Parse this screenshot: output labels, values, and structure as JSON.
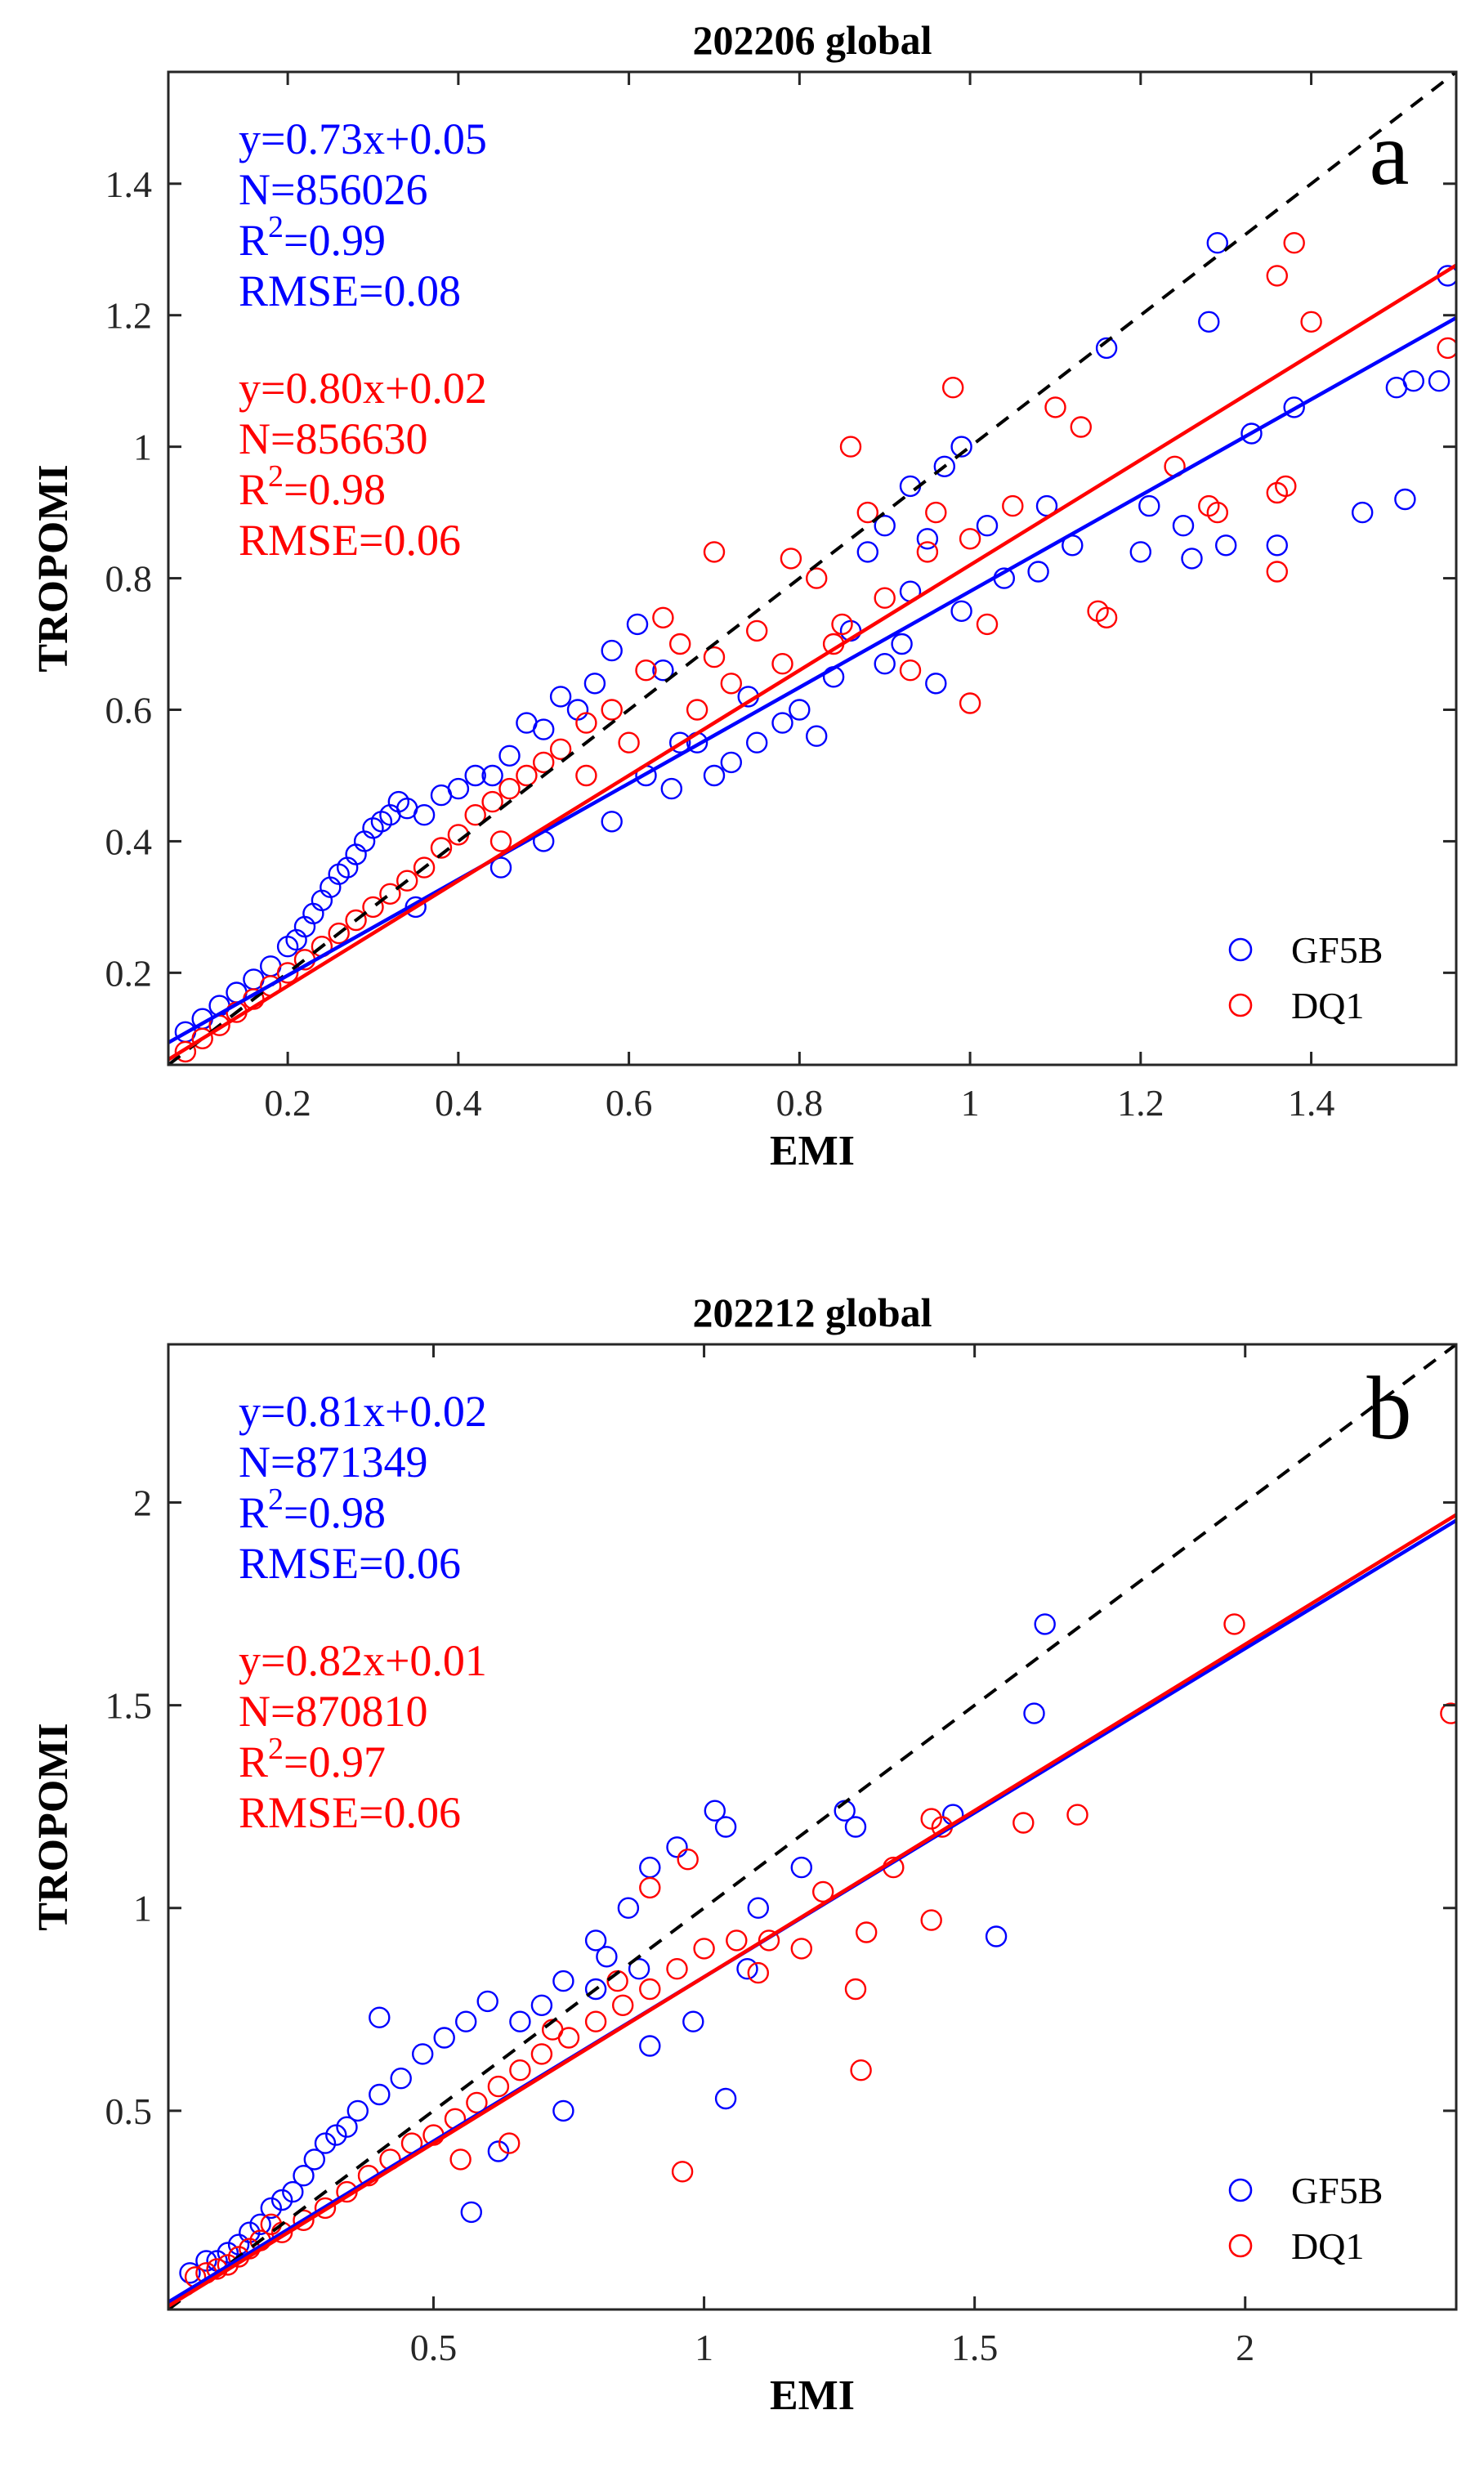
{
  "chart_data": [
    {
      "type": "scatter",
      "title": "202206 global",
      "xlabel": "EMI",
      "ylabel": "TROPOMI",
      "xlim": [
        0.06,
        1.57
      ],
      "ylim": [
        0.06,
        1.57
      ],
      "xticks": [
        0.2,
        0.4,
        0.6,
        0.8,
        1,
        1.2,
        1.4
      ],
      "yticks": [
        0.2,
        0.4,
        0.6,
        0.8,
        1,
        1.2,
        1.4
      ],
      "panel_letter": "a",
      "one_to_one_line": true,
      "legend_placement": "bottom-right",
      "series": [
        {
          "name": "GF5B",
          "color": "#0000ff",
          "marker": "circle-open",
          "fit": {
            "slope": 0.73,
            "intercept": 0.05
          },
          "stats": [
            "y=0.73x+0.05",
            "N=856026",
            "R",
            "=0.99",
            "RMSE=0.08"
          ],
          "points": [
            [
              1.29,
              1.31
            ],
            [
              1.56,
              1.26
            ],
            [
              1.28,
              1.19
            ],
            [
              1.16,
              1.15
            ],
            [
              1.38,
              1.06
            ],
            [
              1.33,
              1.02
            ],
            [
              1.52,
              1.1
            ],
            [
              1.5,
              1.09
            ],
            [
              1.55,
              1.1
            ],
            [
              1.25,
              0.88
            ],
            [
              1.21,
              0.91
            ],
            [
              1.12,
              0.85
            ],
            [
              1.2,
              0.84
            ],
            [
              1.3,
              0.85
            ],
            [
              1.36,
              0.85
            ],
            [
              1.46,
              0.9
            ],
            [
              1.51,
              0.92
            ],
            [
              1.26,
              0.83
            ],
            [
              1.04,
              0.8
            ],
            [
              1.08,
              0.81
            ],
            [
              0.97,
              0.97
            ],
            [
              0.99,
              1.0
            ],
            [
              0.93,
              0.94
            ],
            [
              1.09,
              0.91
            ],
            [
              1.02,
              0.88
            ],
            [
              0.9,
              0.88
            ],
            [
              0.95,
              0.86
            ],
            [
              0.88,
              0.84
            ],
            [
              0.93,
              0.78
            ],
            [
              0.99,
              0.75
            ],
            [
              0.86,
              0.72
            ],
            [
              0.84,
              0.65
            ],
            [
              0.9,
              0.67
            ],
            [
              0.78,
              0.58
            ],
            [
              0.82,
              0.56
            ],
            [
              0.75,
              0.55
            ],
            [
              0.72,
              0.52
            ],
            [
              0.7,
              0.5
            ],
            [
              0.68,
              0.55
            ],
            [
              0.64,
              0.66
            ],
            [
              0.61,
              0.73
            ],
            [
              0.58,
              0.69
            ],
            [
              0.56,
              0.64
            ],
            [
              0.54,
              0.6
            ],
            [
              0.52,
              0.62
            ],
            [
              0.5,
              0.57
            ],
            [
              0.48,
              0.58
            ],
            [
              0.46,
              0.53
            ],
            [
              0.44,
              0.5
            ],
            [
              0.42,
              0.5
            ],
            [
              0.4,
              0.48
            ],
            [
              0.38,
              0.47
            ],
            [
              0.36,
              0.44
            ],
            [
              0.34,
              0.45
            ],
            [
              0.33,
              0.46
            ],
            [
              0.32,
              0.44
            ],
            [
              0.31,
              0.43
            ],
            [
              0.3,
              0.42
            ],
            [
              0.29,
              0.4
            ],
            [
              0.28,
              0.38
            ],
            [
              0.27,
              0.36
            ],
            [
              0.26,
              0.35
            ],
            [
              0.25,
              0.33
            ],
            [
              0.24,
              0.31
            ],
            [
              0.23,
              0.29
            ],
            [
              0.22,
              0.27
            ],
            [
              0.21,
              0.25
            ],
            [
              0.2,
              0.24
            ],
            [
              0.18,
              0.21
            ],
            [
              0.16,
              0.19
            ],
            [
              0.14,
              0.17
            ],
            [
              0.12,
              0.15
            ],
            [
              0.1,
              0.13
            ],
            [
              0.08,
              0.11
            ],
            [
              0.35,
              0.3
            ],
            [
              0.5,
              0.4
            ],
            [
              0.62,
              0.5
            ],
            [
              0.66,
              0.55
            ],
            [
              0.74,
              0.62
            ],
            [
              0.8,
              0.6
            ],
            [
              0.92,
              0.7
            ],
            [
              0.96,
              0.64
            ],
            [
              0.65,
              0.48
            ],
            [
              0.58,
              0.43
            ],
            [
              0.45,
              0.36
            ]
          ]
        },
        {
          "name": "DQ1",
          "color": "#ff0000",
          "marker": "circle-open",
          "fit": {
            "slope": 0.8,
            "intercept": 0.02
          },
          "stats": [
            "y=0.80x+0.02",
            "N=856630",
            "R",
            "=0.98",
            "RMSE=0.06"
          ],
          "points": [
            [
              1.38,
              1.31
            ],
            [
              1.36,
              1.26
            ],
            [
              1.4,
              1.19
            ],
            [
              1.56,
              1.15
            ],
            [
              0.98,
              1.09
            ],
            [
              1.1,
              1.06
            ],
            [
              1.13,
              1.03
            ],
            [
              1.24,
              0.97
            ],
            [
              1.36,
              0.93
            ],
            [
              1.37,
              0.94
            ],
            [
              1.28,
              0.91
            ],
            [
              1.29,
              0.9
            ],
            [
              1.36,
              0.81
            ],
            [
              1.16,
              0.74
            ],
            [
              1.15,
              0.75
            ],
            [
              0.86,
              1.0
            ],
            [
              0.88,
              0.9
            ],
            [
              0.96,
              0.9
            ],
            [
              1.0,
              0.86
            ],
            [
              1.05,
              0.91
            ],
            [
              0.95,
              0.84
            ],
            [
              1.02,
              0.73
            ],
            [
              1.0,
              0.61
            ],
            [
              0.93,
              0.66
            ],
            [
              0.84,
              0.7
            ],
            [
              0.82,
              0.8
            ],
            [
              0.75,
              0.72
            ],
            [
              0.7,
              0.68
            ],
            [
              0.66,
              0.7
            ],
            [
              0.62,
              0.66
            ],
            [
              0.58,
              0.6
            ],
            [
              0.55,
              0.58
            ],
            [
              0.52,
              0.54
            ],
            [
              0.5,
              0.52
            ],
            [
              0.48,
              0.5
            ],
            [
              0.46,
              0.48
            ],
            [
              0.44,
              0.46
            ],
            [
              0.42,
              0.44
            ],
            [
              0.4,
              0.41
            ],
            [
              0.38,
              0.39
            ],
            [
              0.36,
              0.36
            ],
            [
              0.34,
              0.34
            ],
            [
              0.32,
              0.32
            ],
            [
              0.3,
              0.3
            ],
            [
              0.28,
              0.28
            ],
            [
              0.26,
              0.26
            ],
            [
              0.24,
              0.24
            ],
            [
              0.22,
              0.22
            ],
            [
              0.2,
              0.2
            ],
            [
              0.18,
              0.18
            ],
            [
              0.16,
              0.16
            ],
            [
              0.14,
              0.14
            ],
            [
              0.12,
              0.12
            ],
            [
              0.1,
              0.1
            ],
            [
              0.08,
              0.08
            ],
            [
              0.45,
              0.4
            ],
            [
              0.55,
              0.5
            ],
            [
              0.6,
              0.55
            ],
            [
              0.68,
              0.6
            ],
            [
              0.72,
              0.64
            ],
            [
              0.78,
              0.67
            ],
            [
              0.85,
              0.73
            ],
            [
              0.9,
              0.77
            ],
            [
              0.64,
              0.74
            ],
            [
              0.7,
              0.84
            ],
            [
              0.79,
              0.83
            ]
          ]
        }
      ]
    },
    {
      "type": "scatter",
      "title": "202212 global",
      "xlabel": "EMI",
      "ylabel": "TROPOMI",
      "xlim": [
        0.01,
        2.39
      ],
      "ylim": [
        0.01,
        2.39
      ],
      "xticks": [
        0.5,
        1,
        1.5,
        2
      ],
      "yticks": [
        0.5,
        1,
        1.5,
        2
      ],
      "panel_letter": "b",
      "one_to_one_line": true,
      "legend_placement": "bottom-right",
      "series": [
        {
          "name": "GF5B",
          "color": "#0000ff",
          "marker": "circle-open",
          "fit": {
            "slope": 0.81,
            "intercept": 0.02
          },
          "stats": [
            "y=0.81x+0.02",
            "N=871349",
            "R",
            "=0.98",
            "RMSE=0.06"
          ],
          "points": [
            [
              1.63,
              1.7
            ],
            [
              1.61,
              1.48
            ],
            [
              1.54,
              0.93
            ],
            [
              1.46,
              1.23
            ],
            [
              1.26,
              1.24
            ],
            [
              1.28,
              1.2
            ],
            [
              1.18,
              1.1
            ],
            [
              1.1,
              1.0
            ],
            [
              1.02,
              1.24
            ],
            [
              1.04,
              1.2
            ],
            [
              0.95,
              1.15
            ],
            [
              0.9,
              1.1
            ],
            [
              0.86,
              1.0
            ],
            [
              0.8,
              0.92
            ],
            [
              1.04,
              0.53
            ],
            [
              0.88,
              0.85
            ],
            [
              0.82,
              0.88
            ],
            [
              0.8,
              0.8
            ],
            [
              0.74,
              0.82
            ],
            [
              0.7,
              0.76
            ],
            [
              0.66,
              0.72
            ],
            [
              0.6,
              0.77
            ],
            [
              0.56,
              0.72
            ],
            [
              0.52,
              0.68
            ],
            [
              0.48,
              0.64
            ],
            [
              0.44,
              0.58
            ],
            [
              0.4,
              0.54
            ],
            [
              0.4,
              0.73
            ],
            [
              0.36,
              0.5
            ],
            [
              0.34,
              0.46
            ],
            [
              0.32,
              0.44
            ],
            [
              0.3,
              0.42
            ],
            [
              0.28,
              0.38
            ],
            [
              0.26,
              0.34
            ],
            [
              0.24,
              0.3
            ],
            [
              0.22,
              0.28
            ],
            [
              0.2,
              0.26
            ],
            [
              0.18,
              0.22
            ],
            [
              0.16,
              0.2
            ],
            [
              0.14,
              0.17
            ],
            [
              0.12,
              0.15
            ],
            [
              0.1,
              0.13
            ],
            [
              0.08,
              0.13
            ],
            [
              0.05,
              0.1
            ],
            [
              0.57,
              0.25
            ],
            [
              0.62,
              0.4
            ],
            [
              0.74,
              0.5
            ],
            [
              0.9,
              0.66
            ],
            [
              0.98,
              0.72
            ],
            [
              1.08,
              0.85
            ]
          ]
        },
        {
          "name": "DQ1",
          "color": "#ff0000",
          "marker": "circle-open",
          "fit": {
            "slope": 0.82,
            "intercept": 0.01
          },
          "stats": [
            "y=0.82x+0.01",
            "N=870810",
            "R",
            "=0.97",
            "RMSE=0.06"
          ],
          "points": [
            [
              1.98,
              1.7
            ],
            [
              2.38,
              1.48
            ],
            [
              1.69,
              1.23
            ],
            [
              1.59,
              1.21
            ],
            [
              1.44,
              1.2
            ],
            [
              1.42,
              1.22
            ],
            [
              1.42,
              0.97
            ],
            [
              1.35,
              1.1
            ],
            [
              1.3,
              0.94
            ],
            [
              1.28,
              0.8
            ],
            [
              1.29,
              0.6
            ],
            [
              1.22,
              1.04
            ],
            [
              1.18,
              0.9
            ],
            [
              1.12,
              0.92
            ],
            [
              1.06,
              0.92
            ],
            [
              0.97,
              1.12
            ],
            [
              0.9,
              1.05
            ],
            [
              0.96,
              0.35
            ],
            [
              0.95,
              0.85
            ],
            [
              0.9,
              0.8
            ],
            [
              0.85,
              0.76
            ],
            [
              0.8,
              0.72
            ],
            [
              0.75,
              0.68
            ],
            [
              0.7,
              0.64
            ],
            [
              0.66,
              0.6
            ],
            [
              0.62,
              0.56
            ],
            [
              0.58,
              0.52
            ],
            [
              0.54,
              0.48
            ],
            [
              0.5,
              0.44
            ],
            [
              0.46,
              0.42
            ],
            [
              0.42,
              0.38
            ],
            [
              0.38,
              0.34
            ],
            [
              0.34,
              0.3
            ],
            [
              0.3,
              0.26
            ],
            [
              0.26,
              0.23
            ],
            [
              0.22,
              0.2
            ],
            [
              0.2,
              0.22
            ],
            [
              0.18,
              0.18
            ],
            [
              0.16,
              0.16
            ],
            [
              0.14,
              0.14
            ],
            [
              0.12,
              0.12
            ],
            [
              0.1,
              0.11
            ],
            [
              0.08,
              0.1
            ],
            [
              0.06,
              0.09
            ],
            [
              0.72,
              0.7
            ],
            [
              0.84,
              0.82
            ],
            [
              1.0,
              0.9
            ],
            [
              1.1,
              0.84
            ],
            [
              0.64,
              0.42
            ],
            [
              0.55,
              0.38
            ]
          ]
        }
      ]
    }
  ]
}
